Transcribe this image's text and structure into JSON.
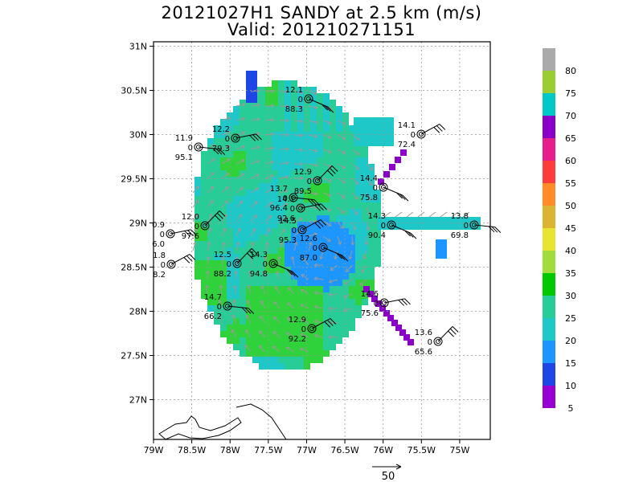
{
  "title": {
    "line1": "20121027H1 SANDY at 2.5 km (m/s)",
    "line2": "Valid: 201210271151"
  },
  "map": {
    "lon_range": [
      -79.0,
      -74.6
    ],
    "lat_range": [
      26.55,
      31.05
    ],
    "lon_ticks": [
      "79W",
      "78.5W",
      "78W",
      "77.5W",
      "77W",
      "76.5W",
      "76W",
      "75.5W",
      "75W"
    ],
    "lat_ticks": [
      "27N",
      "27.5N",
      "28N",
      "28.5N",
      "29N",
      "29.5N",
      "30N",
      "30.5N",
      "31N"
    ],
    "grid": true
  },
  "colorbar": {
    "labels": [
      "80",
      "75",
      "70",
      "65",
      "60",
      "55",
      "50",
      "45",
      "40",
      "35",
      "30",
      "25",
      "20",
      "15",
      "10",
      "5"
    ],
    "colors": [
      "#aaaaaa",
      "#9acd32",
      "#00c8c8",
      "#8b00c8",
      "#e61e8c",
      "#ff3c3c",
      "#ff8c28",
      "#dcb432",
      "#e6e632",
      "#a0dc3c",
      "#00c800",
      "#28cc96",
      "#1ec8c8",
      "#1e96ff",
      "#1e46e6",
      "#9600d2"
    ]
  },
  "scale_arrow": {
    "label": "50"
  },
  "stations": [
    {
      "top": "12.1",
      "mid": "0",
      "bot": "88.3"
    },
    {
      "top": "11.9",
      "mid": "0",
      "bot": "95.1"
    },
    {
      "top": "12.2",
      "mid": "0",
      "bot": "79.3"
    },
    {
      "top": "14.1",
      "mid": "0",
      "bot": "72.4"
    },
    {
      "top": "12.9",
      "mid": "0",
      "bot": "89.5"
    },
    {
      "top": "14.4",
      "mid": "0",
      "bot": "75.8"
    },
    {
      "top": "13.7",
      "mid": "0",
      "bot": "96.4"
    },
    {
      "top": "14.1",
      "mid": "0",
      "bot": "92.6"
    },
    {
      "top": "14.5",
      "mid": "0",
      "bot": "95.3"
    },
    {
      "top": "12.0",
      "mid": "0",
      "bot": "97.6"
    },
    {
      "top": "14.3",
      "mid": "0",
      "bot": "90.4"
    },
    {
      "top": "13.8",
      "mid": "0",
      "bot": "69.8"
    },
    {
      "top": "0.9",
      "mid": "0",
      "bot": "6.0"
    },
    {
      "top": "1.8",
      "mid": "0",
      "bot": "8.2"
    },
    {
      "top": "12.5",
      "mid": "0",
      "bot": "88.2"
    },
    {
      "top": "14.3",
      "mid": "0",
      "bot": "94.8"
    },
    {
      "top": "14.7",
      "mid": "0",
      "bot": "66.2"
    },
    {
      "top": "14.6",
      "mid": "0",
      "bot": "75.6"
    },
    {
      "top": "12.9",
      "mid": "0",
      "bot": "92.2"
    },
    {
      "top": "13.6",
      "mid": "0",
      "bot": "65.6"
    },
    {
      "top": "12.6",
      "mid": "0",
      "bot": "87.0"
    }
  ]
}
